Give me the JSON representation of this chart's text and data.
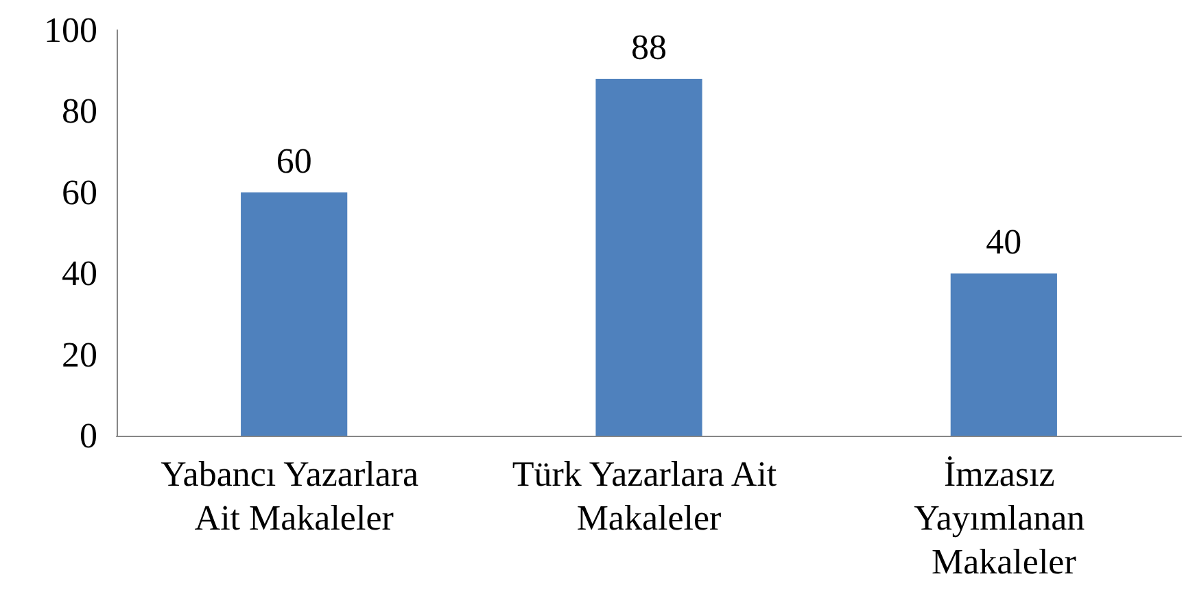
{
  "chart_data": {
    "type": "bar",
    "categories": [
      "Yabancı Yazarlara Ait Makaleler",
      "Türk Yazarlara Ait Makaleler",
      "İmzasız Yayımlanan Makaleler"
    ],
    "values": [
      60,
      88,
      40
    ],
    "color": "#4f81bd",
    "ylim": [
      0,
      100
    ],
    "yticks": [
      0,
      20,
      40,
      60,
      80,
      100
    ],
    "grid": false,
    "data_labels": true
  }
}
